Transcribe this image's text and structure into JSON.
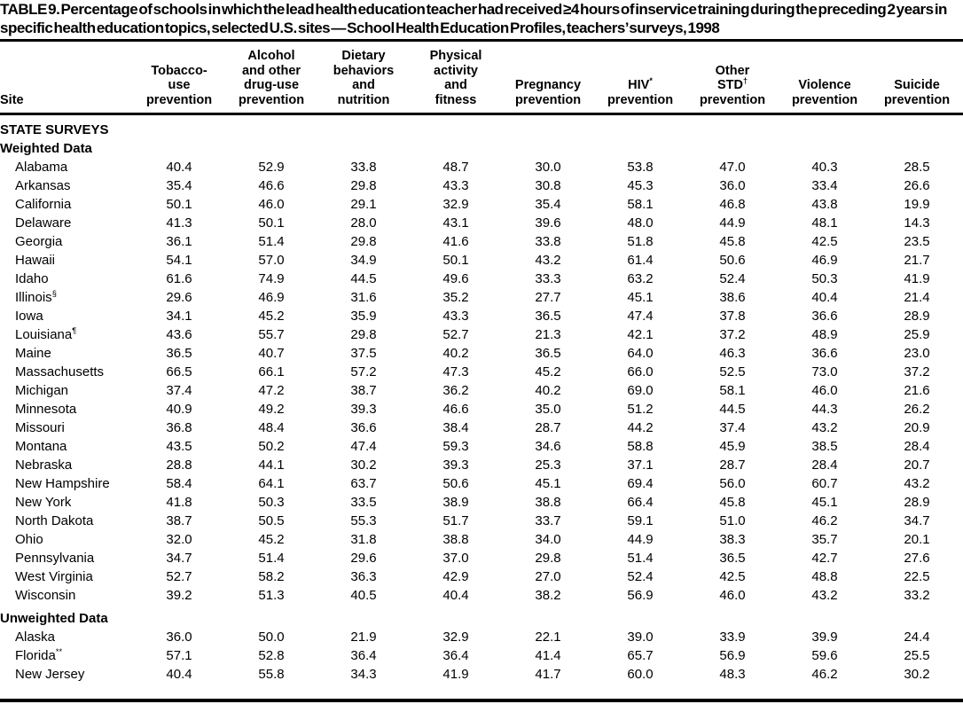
{
  "title": "TABLE 9. Percentage of schools in which the lead health education teacher had received ≥4 hours of inservice training during the preceding 2 years in specific health education topics, selected U.S. sites — School Health Education Profiles, teachers’ surveys, 1998",
  "table": {
    "site_header": "Site",
    "columns": [
      {
        "id": "tobacco-use-prevention",
        "lines": [
          "Tobacco-",
          "use",
          "prevention"
        ]
      },
      {
        "id": "alcohol-drug-use-prevention",
        "lines": [
          "Alcohol",
          "and other",
          "drug-use",
          "prevention"
        ]
      },
      {
        "id": "dietary-behaviors-nutrition",
        "lines": [
          "Dietary",
          "behaviors",
          "and",
          "nutrition"
        ]
      },
      {
        "id": "physical-activity-fitness",
        "lines": [
          "Physical",
          "activity",
          "and",
          "fitness"
        ]
      },
      {
        "id": "pregnancy-prevention",
        "lines": [
          "Pregnancy",
          "prevention"
        ]
      },
      {
        "id": "hiv-prevention",
        "lines": [
          {
            "t": "HIV",
            "sup": "*"
          },
          "prevention"
        ]
      },
      {
        "id": "other-std-prevention",
        "lines": [
          "Other",
          {
            "t": "STD",
            "sup": "†"
          },
          "prevention"
        ]
      },
      {
        "id": "violence-prevention",
        "lines": [
          "Violence",
          "prevention"
        ]
      },
      {
        "id": "suicide-prevention",
        "lines": [
          "Suicide",
          "prevention"
        ]
      }
    ],
    "body": [
      {
        "type": "section",
        "label": "STATE SURVEYS"
      },
      {
        "type": "section",
        "label": "Weighted Data"
      },
      {
        "type": "row",
        "site": "Alabama",
        "values": [
          "40.4",
          "52.9",
          "33.8",
          "48.7",
          "30.0",
          "53.8",
          "47.0",
          "40.3",
          "28.5"
        ]
      },
      {
        "type": "row",
        "site": "Arkansas",
        "values": [
          "35.4",
          "46.6",
          "29.8",
          "43.3",
          "30.8",
          "45.3",
          "36.0",
          "33.4",
          "26.6"
        ]
      },
      {
        "type": "row",
        "site": "California",
        "values": [
          "50.1",
          "46.0",
          "29.1",
          "32.9",
          "35.4",
          "58.1",
          "46.8",
          "43.8",
          "19.9"
        ]
      },
      {
        "type": "row",
        "site": "Delaware",
        "values": [
          "41.3",
          "50.1",
          "28.0",
          "43.1",
          "39.6",
          "48.0",
          "44.9",
          "48.1",
          "14.3"
        ]
      },
      {
        "type": "row",
        "site": "Georgia",
        "values": [
          "36.1",
          "51.4",
          "29.8",
          "41.6",
          "33.8",
          "51.8",
          "45.8",
          "42.5",
          "23.5"
        ]
      },
      {
        "type": "row",
        "site": "Hawaii",
        "values": [
          "54.1",
          "57.0",
          "34.9",
          "50.1",
          "43.2",
          "61.4",
          "50.6",
          "46.9",
          "21.7"
        ]
      },
      {
        "type": "row",
        "site": "Idaho",
        "values": [
          "61.6",
          "74.9",
          "44.5",
          "49.6",
          "33.3",
          "63.2",
          "52.4",
          "50.3",
          "41.9"
        ]
      },
      {
        "type": "row",
        "site": {
          "t": "Illinois",
          "sup": "§"
        },
        "values": [
          "29.6",
          "46.9",
          "31.6",
          "35.2",
          "27.7",
          "45.1",
          "38.6",
          "40.4",
          "21.4"
        ]
      },
      {
        "type": "row",
        "site": "Iowa",
        "values": [
          "34.1",
          "45.2",
          "35.9",
          "43.3",
          "36.5",
          "47.4",
          "37.8",
          "36.6",
          "28.9"
        ]
      },
      {
        "type": "row",
        "site": {
          "t": "Louisiana",
          "sup": "¶"
        },
        "values": [
          "43.6",
          "55.7",
          "29.8",
          "52.7",
          "21.3",
          "42.1",
          "37.2",
          "48.9",
          "25.9"
        ]
      },
      {
        "type": "row",
        "site": "Maine",
        "values": [
          "36.5",
          "40.7",
          "37.5",
          "40.2",
          "36.5",
          "64.0",
          "46.3",
          "36.6",
          "23.0"
        ]
      },
      {
        "type": "row",
        "site": "Massachusetts",
        "values": [
          "66.5",
          "66.1",
          "57.2",
          "47.3",
          "45.2",
          "66.0",
          "52.5",
          "73.0",
          "37.2"
        ]
      },
      {
        "type": "row",
        "site": "Michigan",
        "values": [
          "37.4",
          "47.2",
          "38.7",
          "36.2",
          "40.2",
          "69.0",
          "58.1",
          "46.0",
          "21.6"
        ]
      },
      {
        "type": "row",
        "site": "Minnesota",
        "values": [
          "40.9",
          "49.2",
          "39.3",
          "46.6",
          "35.0",
          "51.2",
          "44.5",
          "44.3",
          "26.2"
        ]
      },
      {
        "type": "row",
        "site": "Missouri",
        "values": [
          "36.8",
          "48.4",
          "36.6",
          "38.4",
          "28.7",
          "44.2",
          "37.4",
          "43.2",
          "20.9"
        ]
      },
      {
        "type": "row",
        "site": "Montana",
        "values": [
          "43.5",
          "50.2",
          "47.4",
          "59.3",
          "34.6",
          "58.8",
          "45.9",
          "38.5",
          "28.4"
        ]
      },
      {
        "type": "row",
        "site": "Nebraska",
        "values": [
          "28.8",
          "44.1",
          "30.2",
          "39.3",
          "25.3",
          "37.1",
          "28.7",
          "28.4",
          "20.7"
        ]
      },
      {
        "type": "row",
        "site": "New Hampshire",
        "values": [
          "58.4",
          "64.1",
          "63.7",
          "50.6",
          "45.1",
          "69.4",
          "56.0",
          "60.7",
          "43.2"
        ]
      },
      {
        "type": "row",
        "site": "New York",
        "values": [
          "41.8",
          "50.3",
          "33.5",
          "38.9",
          "38.8",
          "66.4",
          "45.8",
          "45.1",
          "28.9"
        ]
      },
      {
        "type": "row",
        "site": "North Dakota",
        "values": [
          "38.7",
          "50.5",
          "55.3",
          "51.7",
          "33.7",
          "59.1",
          "51.0",
          "46.2",
          "34.7"
        ]
      },
      {
        "type": "row",
        "site": "Ohio",
        "values": [
          "32.0",
          "45.2",
          "31.8",
          "38.8",
          "34.0",
          "44.9",
          "38.3",
          "35.7",
          "20.1"
        ]
      },
      {
        "type": "row",
        "site": "Pennsylvania",
        "values": [
          "34.7",
          "51.4",
          "29.6",
          "37.0",
          "29.8",
          "51.4",
          "36.5",
          "42.7",
          "27.6"
        ]
      },
      {
        "type": "row",
        "site": "West Virginia",
        "values": [
          "52.7",
          "58.2",
          "36.3",
          "42.9",
          "27.0",
          "52.4",
          "42.5",
          "48.8",
          "22.5"
        ]
      },
      {
        "type": "row",
        "site": "Wisconsin",
        "values": [
          "39.2",
          "51.3",
          "40.5",
          "40.4",
          "38.2",
          "56.9",
          "46.0",
          "43.2",
          "33.2"
        ]
      },
      {
        "type": "section",
        "label": "Unweighted Data",
        "gap": true
      },
      {
        "type": "row",
        "site": "Alaska",
        "values": [
          "36.0",
          "50.0",
          "21.9",
          "32.9",
          "22.1",
          "39.0",
          "33.9",
          "39.9",
          "24.4"
        ]
      },
      {
        "type": "row",
        "site": {
          "t": "Florida",
          "sup": "**"
        },
        "values": [
          "57.1",
          "52.8",
          "36.4",
          "36.4",
          "41.4",
          "65.7",
          "56.9",
          "59.6",
          "25.5"
        ]
      },
      {
        "type": "row",
        "site": "New Jersey",
        "values": [
          "40.4",
          "55.8",
          "34.3",
          "41.9",
          "41.7",
          "60.0",
          "48.3",
          "46.2",
          "30.2"
        ]
      }
    ]
  }
}
